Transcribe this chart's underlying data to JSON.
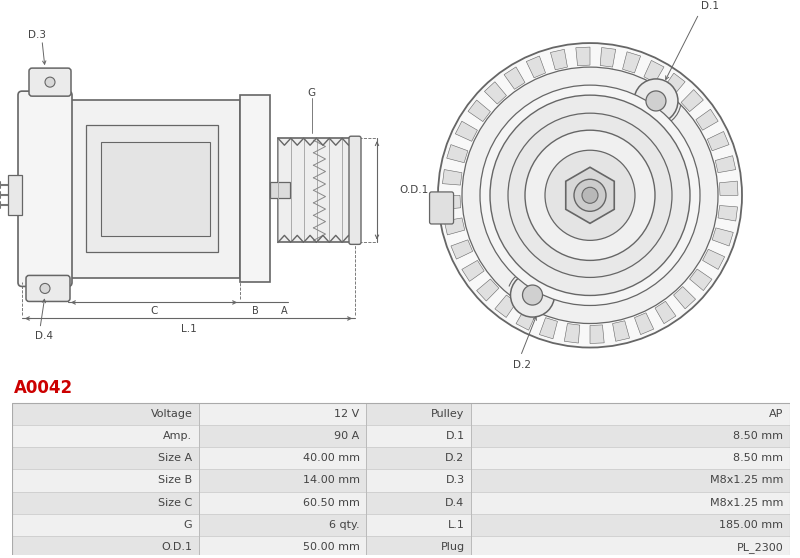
{
  "title_code": "A0042",
  "title_color": "#cc0000",
  "bg_color": "#ffffff",
  "table_data": [
    [
      "Voltage",
      "12 V",
      "Pulley",
      "AP"
    ],
    [
      "Amp.",
      "90 A",
      "D.1",
      "8.50 mm"
    ],
    [
      "Size A",
      "40.00 mm",
      "D.2",
      "8.50 mm"
    ],
    [
      "Size B",
      "14.00 mm",
      "D.3",
      "M8x1.25 mm"
    ],
    [
      "Size C",
      "60.50 mm",
      "D.4",
      "M8x1.25 mm"
    ],
    [
      "G",
      "6 qty.",
      "L.1",
      "185.00 mm"
    ],
    [
      "O.D.1",
      "50.00 mm",
      "Plug",
      "PL_2300"
    ]
  ],
  "line_color": "#666666",
  "label_color": "#444444",
  "table_row_bg1": "#f0f0f0",
  "table_row_bg2": "#e4e4e4"
}
